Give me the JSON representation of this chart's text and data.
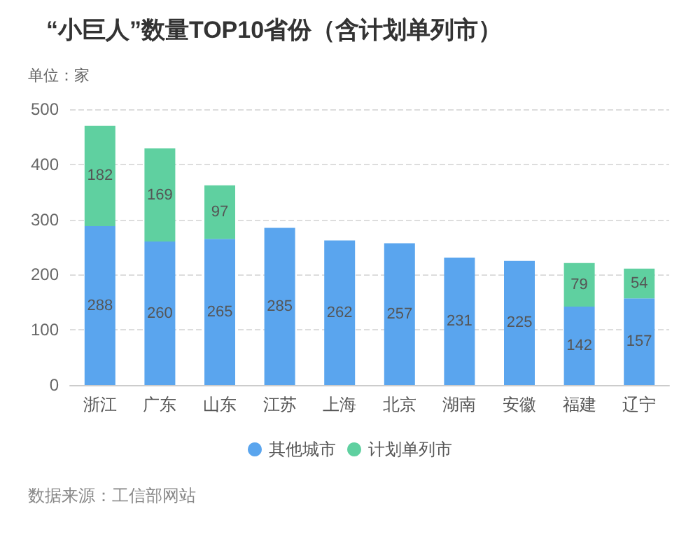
{
  "chart_data": {
    "type": "bar",
    "title": "“小巨人”数量TOP10省份（含计划单列市）",
    "ylabel": "单位：家",
    "categories": [
      "浙江",
      "广东",
      "山东",
      "江苏",
      "上海",
      "北京",
      "湖南",
      "安徽",
      "福建",
      "辽宁"
    ],
    "series": [
      {
        "name": "其他城市",
        "color": "#5aa5ee",
        "values": [
          288,
          260,
          265,
          285,
          262,
          257,
          231,
          225,
          142,
          157
        ]
      },
      {
        "name": "计划单列市",
        "color": "#5fd0a0",
        "values": [
          182,
          169,
          97,
          null,
          null,
          null,
          null,
          null,
          79,
          54
        ]
      }
    ],
    "stacked": true,
    "data_labels": true,
    "ylim": [
      0,
      500
    ],
    "yticks": [
      0,
      100,
      200,
      300,
      400,
      500
    ],
    "grid": "y",
    "legend": "bottom",
    "annotations": [
      "数据来源：工信部网站"
    ]
  }
}
